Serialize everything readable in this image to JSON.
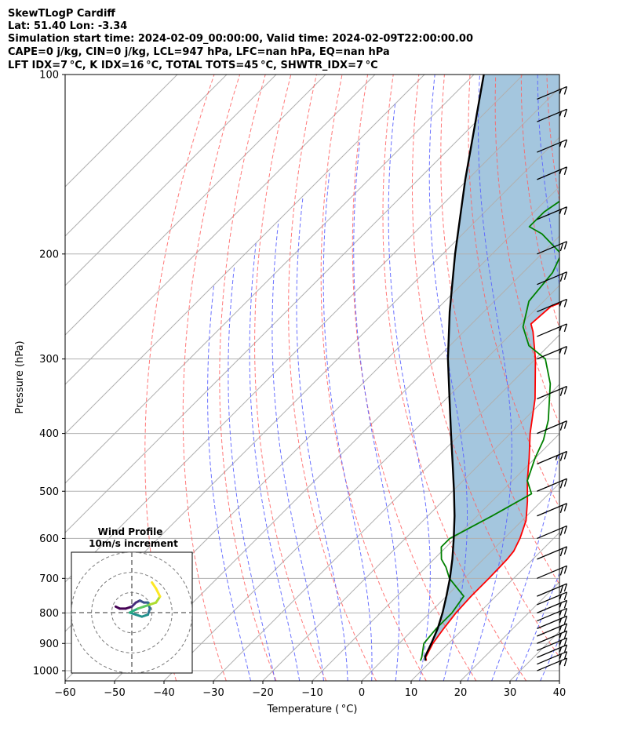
{
  "header": {
    "line1": "SkewTLogP Cardiff",
    "line2": "Lat: 51.40   Lon: -3.34",
    "line3": "Simulation start time: 2024-02-09_00:00:00, Valid time: 2024-02-09T22:00:00.00",
    "line4": "CAPE=0 j/kg, CIN=0 j/kg, LCL=947 hPa, LFC=nan hPa, EQ=nan hPa",
    "line5": "LFT IDX=7 °C, K IDX=16 °C, TOTAL TOTS=45 °C, SHWTR_IDX=7 °C"
  },
  "chart_data": {
    "type": "line",
    "title": "SkewTLogP Cardiff",
    "xlabel": "Temperature ( °C)",
    "ylabel": "Pressure (hPa)",
    "xlim": [
      -60,
      40
    ],
    "ylim": [
      1040,
      100
    ],
    "x_ticks": [
      -60,
      -50,
      -40,
      -30,
      -20,
      -10,
      0,
      10,
      20,
      30,
      40
    ],
    "y_ticks": [
      100,
      200,
      300,
      400,
      500,
      600,
      700,
      800,
      900,
      1000
    ],
    "grid": true,
    "skew": 45,
    "series": [
      {
        "name": "Temperature",
        "color": "#ff0000",
        "points": [
          [
            962,
            9.0
          ],
          [
            950,
            8.2
          ],
          [
            900,
            6.8
          ],
          [
            850,
            6.0
          ],
          [
            800,
            5.3
          ],
          [
            750,
            5.0
          ],
          [
            700,
            5.0
          ],
          [
            650,
            4.8
          ],
          [
            630,
            4.5
          ],
          [
            600,
            3.2
          ],
          [
            560,
            0.8
          ],
          [
            520,
            -2.8
          ],
          [
            480,
            -7.0
          ],
          [
            440,
            -11.2
          ],
          [
            400,
            -16.0
          ],
          [
            350,
            -22.0
          ],
          [
            300,
            -30.0
          ],
          [
            270,
            -36.0
          ],
          [
            262,
            -38.0
          ],
          [
            245,
            -37.5
          ],
          [
            230,
            -32.0
          ],
          [
            215,
            -31.0
          ],
          [
            200,
            -27.0
          ],
          [
            185,
            -26.0
          ],
          [
            170,
            -26.0
          ],
          [
            160,
            -28.5
          ],
          [
            150,
            -31.0
          ],
          [
            140,
            -32.5
          ],
          [
            130,
            -37.0
          ],
          [
            120,
            -42.0
          ],
          [
            110,
            -48.0
          ],
          [
            100,
            -55.0
          ]
        ]
      },
      {
        "name": "Dewpoint",
        "color": "#008000",
        "points": [
          [
            962,
            7.8
          ],
          [
            950,
            7.4
          ],
          [
            900,
            5.0
          ],
          [
            850,
            4.5
          ],
          [
            800,
            4.5
          ],
          [
            750,
            3.5
          ],
          [
            700,
            -3.0
          ],
          [
            670,
            -6.0
          ],
          [
            650,
            -8.5
          ],
          [
            620,
            -11.0
          ],
          [
            600,
            -11.0
          ],
          [
            550,
            -7.0
          ],
          [
            505,
            -3.5
          ],
          [
            480,
            -7.0
          ],
          [
            440,
            -10.0
          ],
          [
            410,
            -12.0
          ],
          [
            380,
            -15.0
          ],
          [
            330,
            -22.0
          ],
          [
            300,
            -28.0
          ],
          [
            285,
            -34.0
          ],
          [
            265,
            -39.0
          ],
          [
            240,
            -43.0
          ],
          [
            215,
            -44.0
          ],
          [
            200,
            -46.0
          ],
          [
            185,
            -54.0
          ],
          [
            180,
            -58.0
          ],
          [
            170,
            -58.0
          ],
          [
            150,
            -55.0
          ],
          [
            130,
            -52.0
          ],
          [
            120,
            -48.0
          ],
          [
            110,
            -43.0
          ],
          [
            100,
            -40.0
          ]
        ]
      },
      {
        "name": "Parcel",
        "color": "#000000",
        "points": [
          [
            962,
            8.8
          ],
          [
            947,
            7.9
          ],
          [
            900,
            6.5
          ],
          [
            850,
            4.8
          ],
          [
            800,
            2.6
          ],
          [
            750,
            0.0
          ],
          [
            700,
            -2.9
          ],
          [
            650,
            -6.3
          ],
          [
            600,
            -10.2
          ],
          [
            550,
            -14.6
          ],
          [
            500,
            -19.7
          ],
          [
            450,
            -25.5
          ],
          [
            400,
            -32.0
          ],
          [
            350,
            -39.3
          ],
          [
            300,
            -47.7
          ],
          [
            250,
            -56.9
          ],
          [
            200,
            -67.5
          ],
          [
            150,
            -80.5
          ],
          [
            100,
            -98.0
          ]
        ]
      }
    ],
    "cape_shading": {
      "color": "#a4c6de",
      "between": [
        "Parcel",
        "Temperature"
      ]
    },
    "dry_adiabats_K": [
      233,
      243,
      253,
      263,
      273,
      283,
      293,
      303,
      313,
      323,
      333,
      343,
      353,
      363,
      373,
      383,
      393,
      403,
      413,
      423
    ],
    "moist_adiabats_C": [
      -25,
      -20,
      -15,
      -10,
      -5,
      0,
      5,
      10,
      15,
      20,
      25,
      30,
      35,
      40,
      45
    ],
    "wind_barbs": {
      "x_deg": 38,
      "levels": [
        {
          "p": 1000,
          "speed_kt": 15
        },
        {
          "p": 975,
          "speed_kt": 15
        },
        {
          "p": 950,
          "speed_kt": 15
        },
        {
          "p": 925,
          "speed_kt": 15
        },
        {
          "p": 900,
          "speed_kt": 15
        },
        {
          "p": 875,
          "speed_kt": 15
        },
        {
          "p": 850,
          "speed_kt": 15
        },
        {
          "p": 825,
          "speed_kt": 15
        },
        {
          "p": 800,
          "speed_kt": 15
        },
        {
          "p": 775,
          "speed_kt": 15
        },
        {
          "p": 750,
          "speed_kt": 20
        },
        {
          "p": 700,
          "speed_kt": 20
        },
        {
          "p": 650,
          "speed_kt": 20
        },
        {
          "p": 600,
          "speed_kt": 20
        },
        {
          "p": 550,
          "speed_kt": 20
        },
        {
          "p": 500,
          "speed_kt": 20
        },
        {
          "p": 450,
          "speed_kt": 25
        },
        {
          "p": 400,
          "speed_kt": 20
        },
        {
          "p": 350,
          "speed_kt": 20
        },
        {
          "p": 300,
          "speed_kt": 15
        },
        {
          "p": 275,
          "speed_kt": 15
        },
        {
          "p": 250,
          "speed_kt": 15
        },
        {
          "p": 225,
          "speed_kt": 20
        },
        {
          "p": 200,
          "speed_kt": 20
        },
        {
          "p": 175,
          "speed_kt": 15
        },
        {
          "p": 150,
          "speed_kt": 15
        },
        {
          "p": 135,
          "speed_kt": 15
        },
        {
          "p": 120,
          "speed_kt": 15
        },
        {
          "p": 110,
          "speed_kt": 15
        }
      ]
    },
    "hodograph": {
      "title": "Wind Profile",
      "subtitle": "10m/s increment",
      "rings": [
        10,
        20,
        30
      ],
      "range": [
        -30,
        30
      ],
      "points": [
        [
          -8,
          3
        ],
        [
          -6,
          2
        ],
        [
          -3,
          2
        ],
        [
          0,
          3
        ],
        [
          2,
          5
        ],
        [
          4,
          6
        ],
        [
          6,
          5
        ],
        [
          8,
          5
        ],
        [
          9,
          2
        ],
        [
          8,
          -1
        ],
        [
          5,
          -2
        ],
        [
          2,
          -1
        ],
        [
          -1,
          0
        ],
        [
          1,
          1
        ],
        [
          3,
          2
        ],
        [
          6,
          3
        ],
        [
          9,
          4
        ],
        [
          12,
          5
        ],
        [
          14,
          8
        ],
        [
          12,
          12
        ],
        [
          10,
          15
        ]
      ]
    }
  }
}
